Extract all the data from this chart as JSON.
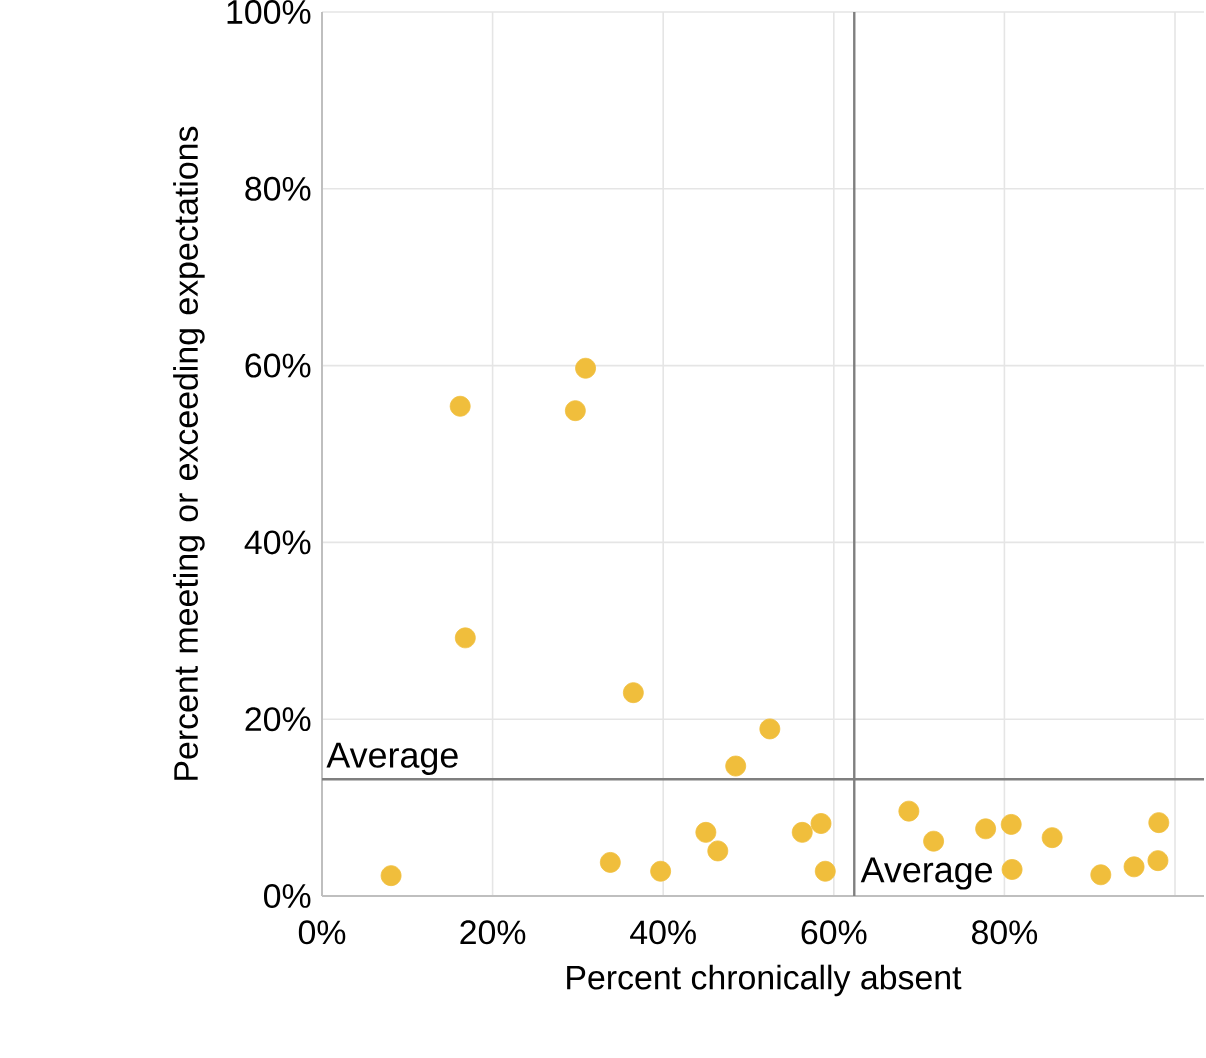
{
  "chart_data": {
    "type": "scatter",
    "xlabel": "Percent chronically absent",
    "ylabel": "Percent meeting or exceeding expectations",
    "x": [
      16.2,
      30.9,
      29.7,
      16.8,
      36.5,
      52.5,
      48.5,
      8.1,
      33.8,
      39.7,
      45.0,
      46.4,
      56.3,
      58.5,
      59.0,
      68.8,
      71.7,
      77.8,
      80.8,
      85.6,
      80.9,
      91.3,
      95.2,
      98.0,
      98.1
    ],
    "values": [
      55.4,
      59.7,
      54.9,
      29.2,
      23.0,
      18.9,
      14.7,
      2.3,
      3.8,
      2.8,
      7.2,
      5.1,
      7.2,
      8.2,
      2.8,
      9.6,
      6.2,
      7.6,
      8.1,
      6.6,
      3.0,
      2.4,
      3.3,
      4.0,
      8.3
    ],
    "color": "#f0be3c",
    "marker": "circle",
    "xlim": [
      0,
      103.4
    ],
    "ylim": [
      0,
      100
    ],
    "xticks": [
      {
        "value": 0,
        "label": "0%"
      },
      {
        "value": 20,
        "label": "20%"
      },
      {
        "value": 40,
        "label": "40%"
      },
      {
        "value": 60,
        "label": "60%"
      },
      {
        "value": 80,
        "label": "80%"
      },
      {
        "value": 100,
        "label": null
      }
    ],
    "yticks": [
      {
        "value": 0,
        "label": "0%"
      },
      {
        "value": 20,
        "label": "20%"
      },
      {
        "value": 40,
        "label": "40%"
      },
      {
        "value": 60,
        "label": "60%"
      },
      {
        "value": 80,
        "label": "80%"
      },
      {
        "value": 100,
        "label": "100%"
      }
    ],
    "grid": true,
    "ref_lines": [
      {
        "axis": "y",
        "value": 13.2,
        "label": "Average",
        "color": "#7f7f7f"
      },
      {
        "axis": "x",
        "value": 62.4,
        "label": "Average",
        "color": "#7f7f7f"
      }
    ]
  }
}
